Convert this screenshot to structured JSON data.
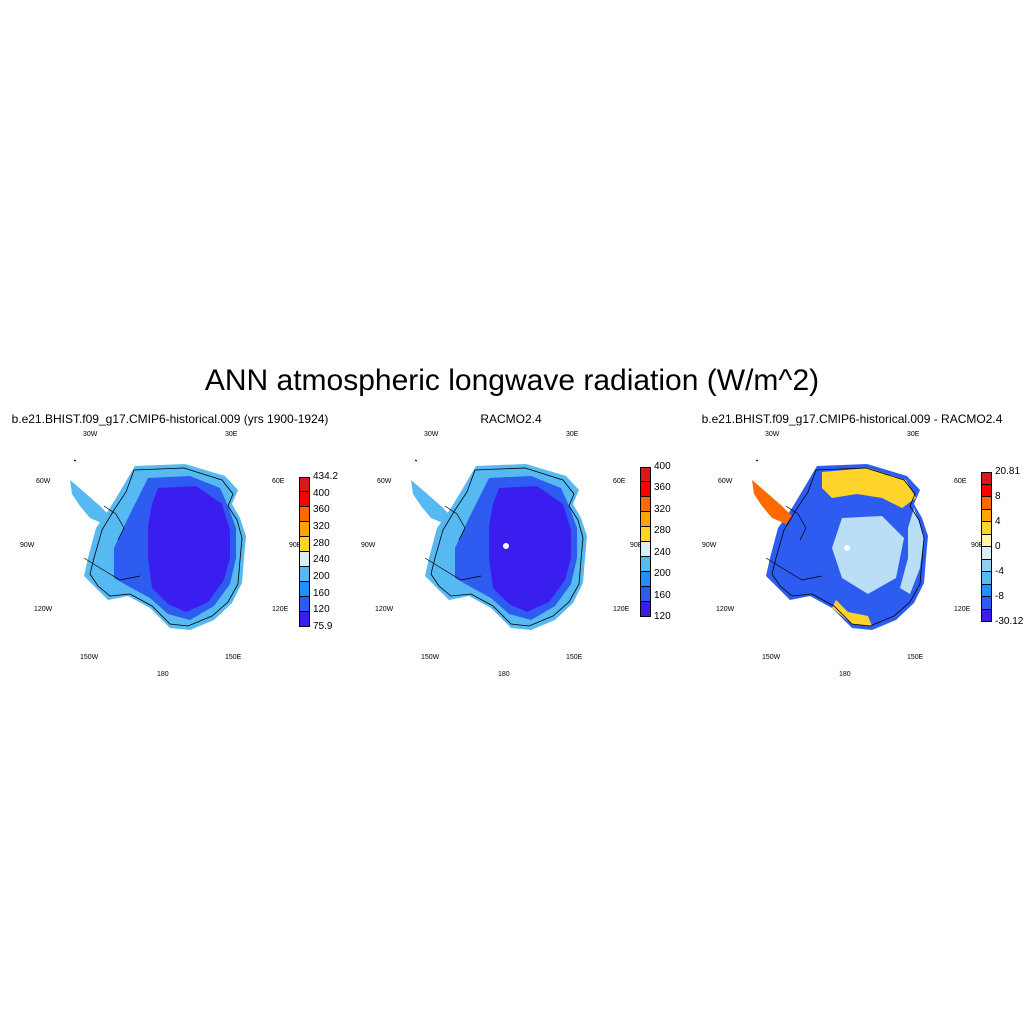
{
  "title": "ANN atmospheric longwave radiation (W/m^2)",
  "panels": [
    {
      "title": "b.e21.BHIST.f09_g17.CMIP6-historical.009 (yrs 1900-1924)",
      "lon_labels": {
        "w30": "30W",
        "e30": "30E",
        "w60": "60W",
        "e60": "60E",
        "w90": "90W",
        "e90": "90E",
        "w120": "120W",
        "e120": "120E",
        "w150": "150W",
        "e150": "150E",
        "s180": "180"
      },
      "colorbar": {
        "labels": [
          "434.2",
          "400",
          "360",
          "320",
          "280",
          "240",
          "200",
          "160",
          "120",
          "75.9"
        ],
        "colors": [
          "#d7191c",
          "#ff0000",
          "#ff6a00",
          "#ffa500",
          "#ffd42a",
          "#d9eef7",
          "#56b9f1",
          "#1e90ff",
          "#2e5cf0",
          "#3a1ef0"
        ]
      }
    },
    {
      "title": "RACMO2.4",
      "lon_labels": {
        "w30": "30W",
        "e30": "30E",
        "w60": "60W",
        "e60": "60E",
        "w90": "90W",
        "e90": "90E",
        "w120": "120W",
        "e120": "120E",
        "w150": "150W",
        "e150": "150E",
        "s180": "180"
      },
      "colorbar": {
        "labels": [
          "400",
          "360",
          "320",
          "280",
          "240",
          "200",
          "160",
          "120"
        ],
        "colors": [
          "#d7191c",
          "#ff0000",
          "#ff6a00",
          "#ffa500",
          "#ffd42a",
          "#d9eef7",
          "#56b9f1",
          "#1e90ff",
          "#2e5cf0",
          "#3a1ef0"
        ]
      }
    },
    {
      "title": "b.e21.BHIST.f09_g17.CMIP6-historical.009 - RACMO2.4",
      "lon_labels": {
        "w30": "30W",
        "e30": "30E",
        "w60": "60W",
        "e60": "60E",
        "w90": "90W",
        "e90": "90E",
        "w120": "120W",
        "e120": "120E",
        "w150": "150W",
        "e150": "150E",
        "s180": "180"
      },
      "colorbar": {
        "labels": [
          "20.81",
          "8",
          "4",
          "0",
          "-4",
          "-8",
          "-30.12"
        ],
        "colors": [
          "#d7191c",
          "#ff0000",
          "#ff6a00",
          "#ffa500",
          "#ffd42a",
          "#fff6a8",
          "#d9eef7",
          "#8fd0f5",
          "#56b9f1",
          "#1e90ff",
          "#2e5cf0",
          "#3a1ef0"
        ]
      }
    }
  ],
  "map_colors": {
    "outer": "#56b9f1",
    "ring": "#1e90ff",
    "mid": "#2e5cf0",
    "core": "#3a1ef0",
    "diff_warm1": "#ffd42a",
    "diff_warm2": "#ff6a00",
    "diff_light": "#b9def5"
  }
}
